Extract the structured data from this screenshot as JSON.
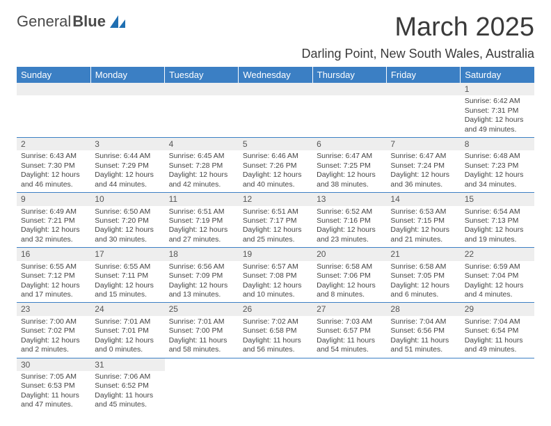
{
  "brand": {
    "part1": "General",
    "part2": "Blue"
  },
  "title": "March 2025",
  "location": "Darling Point, New South Wales, Australia",
  "headerBg": "#3b7fc4",
  "dayHeaders": [
    "Sunday",
    "Monday",
    "Tuesday",
    "Wednesday",
    "Thursday",
    "Friday",
    "Saturday"
  ],
  "weeks": [
    [
      null,
      null,
      null,
      null,
      null,
      null,
      {
        "n": "1",
        "sr": "6:42 AM",
        "ss": "7:31 PM",
        "dl": "12 hours and 49 minutes."
      }
    ],
    [
      {
        "n": "2",
        "sr": "6:43 AM",
        "ss": "7:30 PM",
        "dl": "12 hours and 46 minutes."
      },
      {
        "n": "3",
        "sr": "6:44 AM",
        "ss": "7:29 PM",
        "dl": "12 hours and 44 minutes."
      },
      {
        "n": "4",
        "sr": "6:45 AM",
        "ss": "7:28 PM",
        "dl": "12 hours and 42 minutes."
      },
      {
        "n": "5",
        "sr": "6:46 AM",
        "ss": "7:26 PM",
        "dl": "12 hours and 40 minutes."
      },
      {
        "n": "6",
        "sr": "6:47 AM",
        "ss": "7:25 PM",
        "dl": "12 hours and 38 minutes."
      },
      {
        "n": "7",
        "sr": "6:47 AM",
        "ss": "7:24 PM",
        "dl": "12 hours and 36 minutes."
      },
      {
        "n": "8",
        "sr": "6:48 AM",
        "ss": "7:23 PM",
        "dl": "12 hours and 34 minutes."
      }
    ],
    [
      {
        "n": "9",
        "sr": "6:49 AM",
        "ss": "7:21 PM",
        "dl": "12 hours and 32 minutes."
      },
      {
        "n": "10",
        "sr": "6:50 AM",
        "ss": "7:20 PM",
        "dl": "12 hours and 30 minutes."
      },
      {
        "n": "11",
        "sr": "6:51 AM",
        "ss": "7:19 PM",
        "dl": "12 hours and 27 minutes."
      },
      {
        "n": "12",
        "sr": "6:51 AM",
        "ss": "7:17 PM",
        "dl": "12 hours and 25 minutes."
      },
      {
        "n": "13",
        "sr": "6:52 AM",
        "ss": "7:16 PM",
        "dl": "12 hours and 23 minutes."
      },
      {
        "n": "14",
        "sr": "6:53 AM",
        "ss": "7:15 PM",
        "dl": "12 hours and 21 minutes."
      },
      {
        "n": "15",
        "sr": "6:54 AM",
        "ss": "7:13 PM",
        "dl": "12 hours and 19 minutes."
      }
    ],
    [
      {
        "n": "16",
        "sr": "6:55 AM",
        "ss": "7:12 PM",
        "dl": "12 hours and 17 minutes."
      },
      {
        "n": "17",
        "sr": "6:55 AM",
        "ss": "7:11 PM",
        "dl": "12 hours and 15 minutes."
      },
      {
        "n": "18",
        "sr": "6:56 AM",
        "ss": "7:09 PM",
        "dl": "12 hours and 13 minutes."
      },
      {
        "n": "19",
        "sr": "6:57 AM",
        "ss": "7:08 PM",
        "dl": "12 hours and 10 minutes."
      },
      {
        "n": "20",
        "sr": "6:58 AM",
        "ss": "7:06 PM",
        "dl": "12 hours and 8 minutes."
      },
      {
        "n": "21",
        "sr": "6:58 AM",
        "ss": "7:05 PM",
        "dl": "12 hours and 6 minutes."
      },
      {
        "n": "22",
        "sr": "6:59 AM",
        "ss": "7:04 PM",
        "dl": "12 hours and 4 minutes."
      }
    ],
    [
      {
        "n": "23",
        "sr": "7:00 AM",
        "ss": "7:02 PM",
        "dl": "12 hours and 2 minutes."
      },
      {
        "n": "24",
        "sr": "7:01 AM",
        "ss": "7:01 PM",
        "dl": "12 hours and 0 minutes."
      },
      {
        "n": "25",
        "sr": "7:01 AM",
        "ss": "7:00 PM",
        "dl": "11 hours and 58 minutes."
      },
      {
        "n": "26",
        "sr": "7:02 AM",
        "ss": "6:58 PM",
        "dl": "11 hours and 56 minutes."
      },
      {
        "n": "27",
        "sr": "7:03 AM",
        "ss": "6:57 PM",
        "dl": "11 hours and 54 minutes."
      },
      {
        "n": "28",
        "sr": "7:04 AM",
        "ss": "6:56 PM",
        "dl": "11 hours and 51 minutes."
      },
      {
        "n": "29",
        "sr": "7:04 AM",
        "ss": "6:54 PM",
        "dl": "11 hours and 49 minutes."
      }
    ],
    [
      {
        "n": "30",
        "sr": "7:05 AM",
        "ss": "6:53 PM",
        "dl": "11 hours and 47 minutes."
      },
      {
        "n": "31",
        "sr": "7:06 AM",
        "ss": "6:52 PM",
        "dl": "11 hours and 45 minutes."
      },
      null,
      null,
      null,
      null,
      null
    ]
  ],
  "labels": {
    "sunrise": "Sunrise: ",
    "sunset": "Sunset: ",
    "daylight": "Daylight: "
  }
}
